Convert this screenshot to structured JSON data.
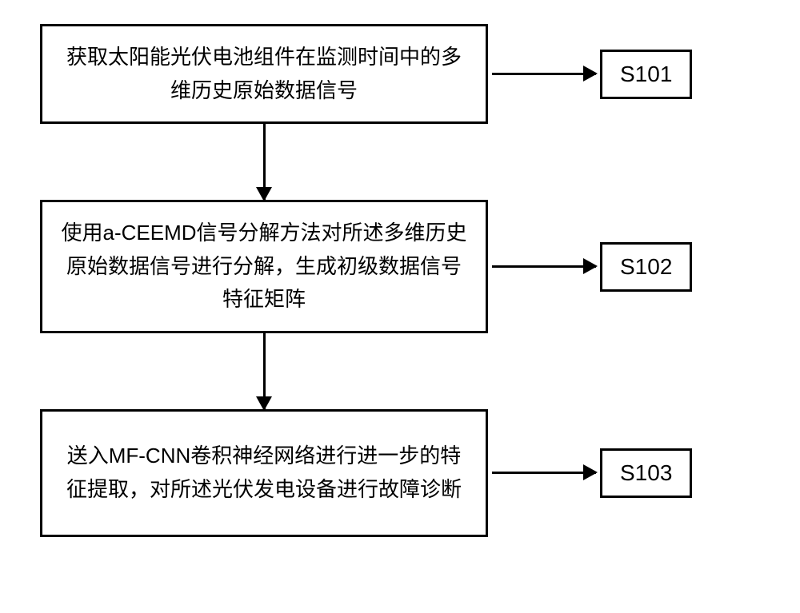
{
  "flow": {
    "steps": [
      {
        "text": "获取太阳能光伏电池组件在监测时间中的多维历史原始数据信号",
        "label": "S101"
      },
      {
        "text": "使用a-CEEMD信号分解方法对所述多维历史原始数据信号进行分解，生成初级数据信号特征矩阵",
        "label": "S102"
      },
      {
        "text": "送入MF-CNN卷积神经网络进行进一步的特征提取，对所述光伏发电设备进行故障诊断",
        "label": "S103"
      }
    ]
  },
  "style": {
    "border_color": "#000000",
    "background_color": "#ffffff",
    "text_color": "#000000",
    "border_width": 3,
    "step_box_width": 560,
    "step_fontsize": 26,
    "label_fontsize": 28,
    "arrow_h_length": 130,
    "arrow_v_length": 95,
    "arrowhead_size": 18
  }
}
